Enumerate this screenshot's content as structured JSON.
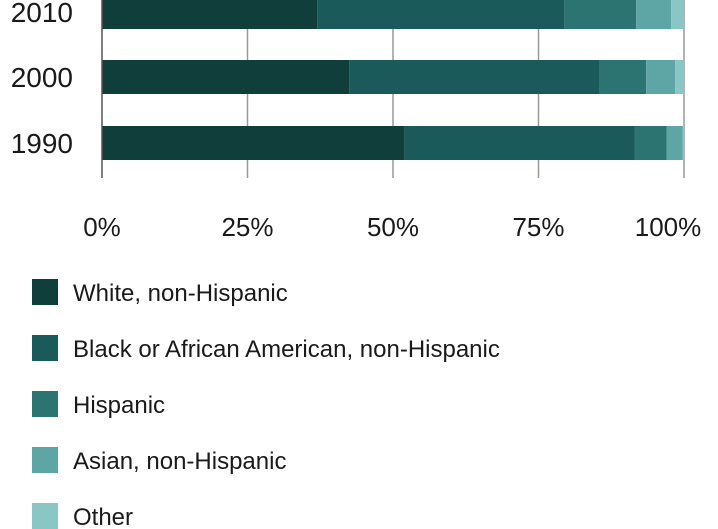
{
  "chart_data": {
    "type": "bar",
    "orientation": "horizontal",
    "stacked": true,
    "percent": true,
    "categories": [
      "2010",
      "2000",
      "1990"
    ],
    "series": [
      {
        "name": "White, non-Hispanic",
        "color": "#0f3e3b",
        "values": [
          37,
          42.5,
          52
        ]
      },
      {
        "name": "Black or African American, non-Hispanic",
        "color": "#1b5a5a",
        "values": [
          42.5,
          43,
          39.5
        ]
      },
      {
        "name": "Hispanic",
        "color": "#2b7472",
        "values": [
          12.3,
          8,
          5.5
        ]
      },
      {
        "name": "Asian, non-Hispanic",
        "color": "#5ea6a5",
        "values": [
          6,
          5,
          2.8
        ]
      },
      {
        "name": "Other",
        "color": "#8ac6c4",
        "values": [
          2.2,
          1.5,
          0.2
        ]
      }
    ],
    "x_ticks": [
      "0%",
      "25%",
      "50%",
      "75%",
      "100%"
    ],
    "xlim": [
      0,
      100
    ],
    "grid": true,
    "legend_position": "bottom"
  },
  "colors": {
    "grid": "#999999",
    "axis": "#555555",
    "text": "#1a1a1a"
  }
}
